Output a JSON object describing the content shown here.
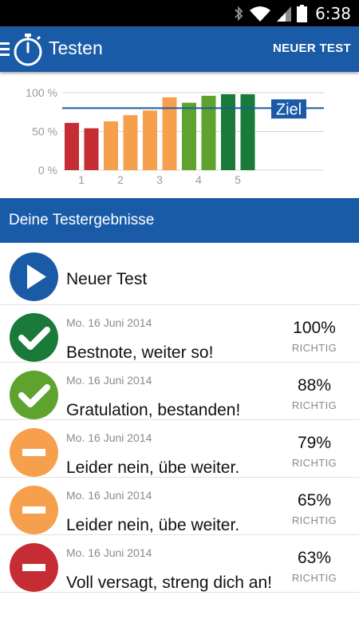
{
  "status_bar": {
    "time": "6:38",
    "icons": [
      "bluetooth-icon",
      "wifi-icon",
      "signal-icon",
      "battery-icon"
    ]
  },
  "app_bar": {
    "title": "Testen",
    "action_label": "NEUER TEST",
    "icons": [
      "menu-icon",
      "stopwatch-icon"
    ],
    "color": "#1a5ba8"
  },
  "chart_data": {
    "type": "bar",
    "categories": [
      "1",
      "",
      "2",
      "",
      "3",
      "",
      "4",
      "",
      "5",
      ""
    ],
    "x_tick_labels": [
      "1",
      "2",
      "3",
      "4",
      "5"
    ],
    "values": [
      61,
      54,
      63,
      71,
      77,
      94,
      87,
      96,
      98,
      98
    ],
    "bar_colors": [
      "#c62c33",
      "#c62c33",
      "#f6a04d",
      "#f6a04d",
      "#f6a04d",
      "#f6a04d",
      "#5fa22e",
      "#5fa22e",
      "#1a7a3a",
      "#1a7a3a"
    ],
    "y_tick_labels": [
      "100 %",
      "50 %",
      "0 %"
    ],
    "ylim": [
      0,
      100
    ],
    "target_line": {
      "value": 80,
      "label": "Ziel",
      "color": "#1a5ba8"
    },
    "title": "",
    "xlabel": "",
    "ylabel": "",
    "grid": true
  },
  "section": {
    "title": "Deine Testergebnisse"
  },
  "list": {
    "new_test": {
      "label": "Neuer Test",
      "icon": "play-icon",
      "color": "#1a5ba8"
    },
    "results": [
      {
        "date": "Mo. 16 Juni 2014",
        "message": "Bestnote, weiter so!",
        "percent": "100%",
        "unit": "RICHTIG",
        "icon": "check-icon",
        "color": "#1a7a3a"
      },
      {
        "date": "Mo. 16 Juni 2014",
        "message": "Gratulation, bestanden!",
        "percent": "88%",
        "unit": "RICHTIG",
        "icon": "check-icon",
        "color": "#5fa22e"
      },
      {
        "date": "Mo. 16 Juni 2014",
        "message": "Leider nein, übe weiter.",
        "percent": "79%",
        "unit": "RICHTIG",
        "icon": "minus-icon",
        "color": "#f6a04d"
      },
      {
        "date": "Mo. 16 Juni 2014",
        "message": "Leider nein, übe weiter.",
        "percent": "65%",
        "unit": "RICHTIG",
        "icon": "minus-icon",
        "color": "#f6a04d"
      },
      {
        "date": "Mo. 16 Juni 2014",
        "message": "Voll versagt, streng dich an!",
        "percent": "63%",
        "unit": "RICHTIG",
        "icon": "minus-icon",
        "color": "#c62c33"
      }
    ]
  }
}
